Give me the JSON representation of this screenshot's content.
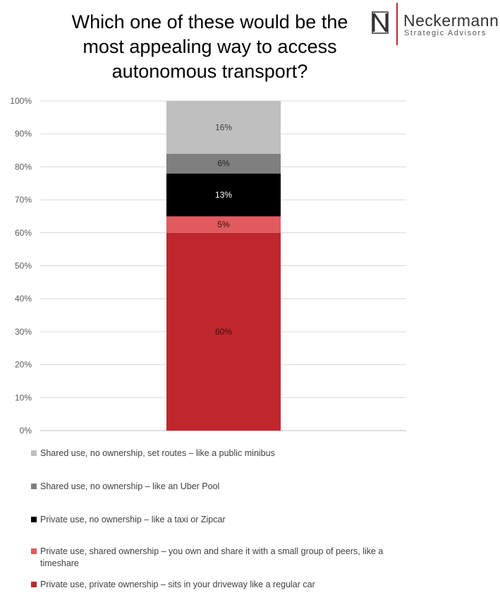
{
  "title": "Which one of these would be the\nmost appealing way to access\nautonomous transport?",
  "logo": {
    "name": "Neckermann",
    "subtitle": "Strategic Advisors",
    "mark_icon": "n-monogram-icon",
    "accent_color": "#c0272d"
  },
  "chart_data": {
    "type": "bar",
    "stacked": true,
    "categories": [
      ""
    ],
    "ylim": [
      0,
      100
    ],
    "yticks": [
      0,
      10,
      20,
      30,
      40,
      50,
      60,
      70,
      80,
      90,
      100
    ],
    "ytick_labels": [
      "0%",
      "10%",
      "20%",
      "30%",
      "40%",
      "50%",
      "60%",
      "70%",
      "80%",
      "90%",
      "100%"
    ],
    "grid": true,
    "legend_position": "bottom",
    "series": [
      {
        "name": "Private use, private ownership – sits in your driveway like a regular car",
        "values": [
          60
        ],
        "label": "60%",
        "color": "#c0272d",
        "label_color": "#3a1010"
      },
      {
        "name": "Private use, shared ownership – you own and share it with a small group of peers, like a timeshare",
        "values": [
          5
        ],
        "label": "5%",
        "color": "#e05a5f",
        "label_color": "#3a1010"
      },
      {
        "name": "Private use, no ownership – like a taxi or Zipcar",
        "values": [
          13
        ],
        "label": "13%",
        "color": "#000000",
        "label_color": "#ffffff"
      },
      {
        "name": "Shared use, no ownership – like an Uber Pool",
        "values": [
          6
        ],
        "label": "6%",
        "color": "#7f7f7f",
        "label_color": "#262626"
      },
      {
        "name": "Shared use, no ownership, set routes – like a public minibus",
        "values": [
          16
        ],
        "label": "16%",
        "color": "#bfbfbf",
        "label_color": "#404040"
      }
    ]
  }
}
